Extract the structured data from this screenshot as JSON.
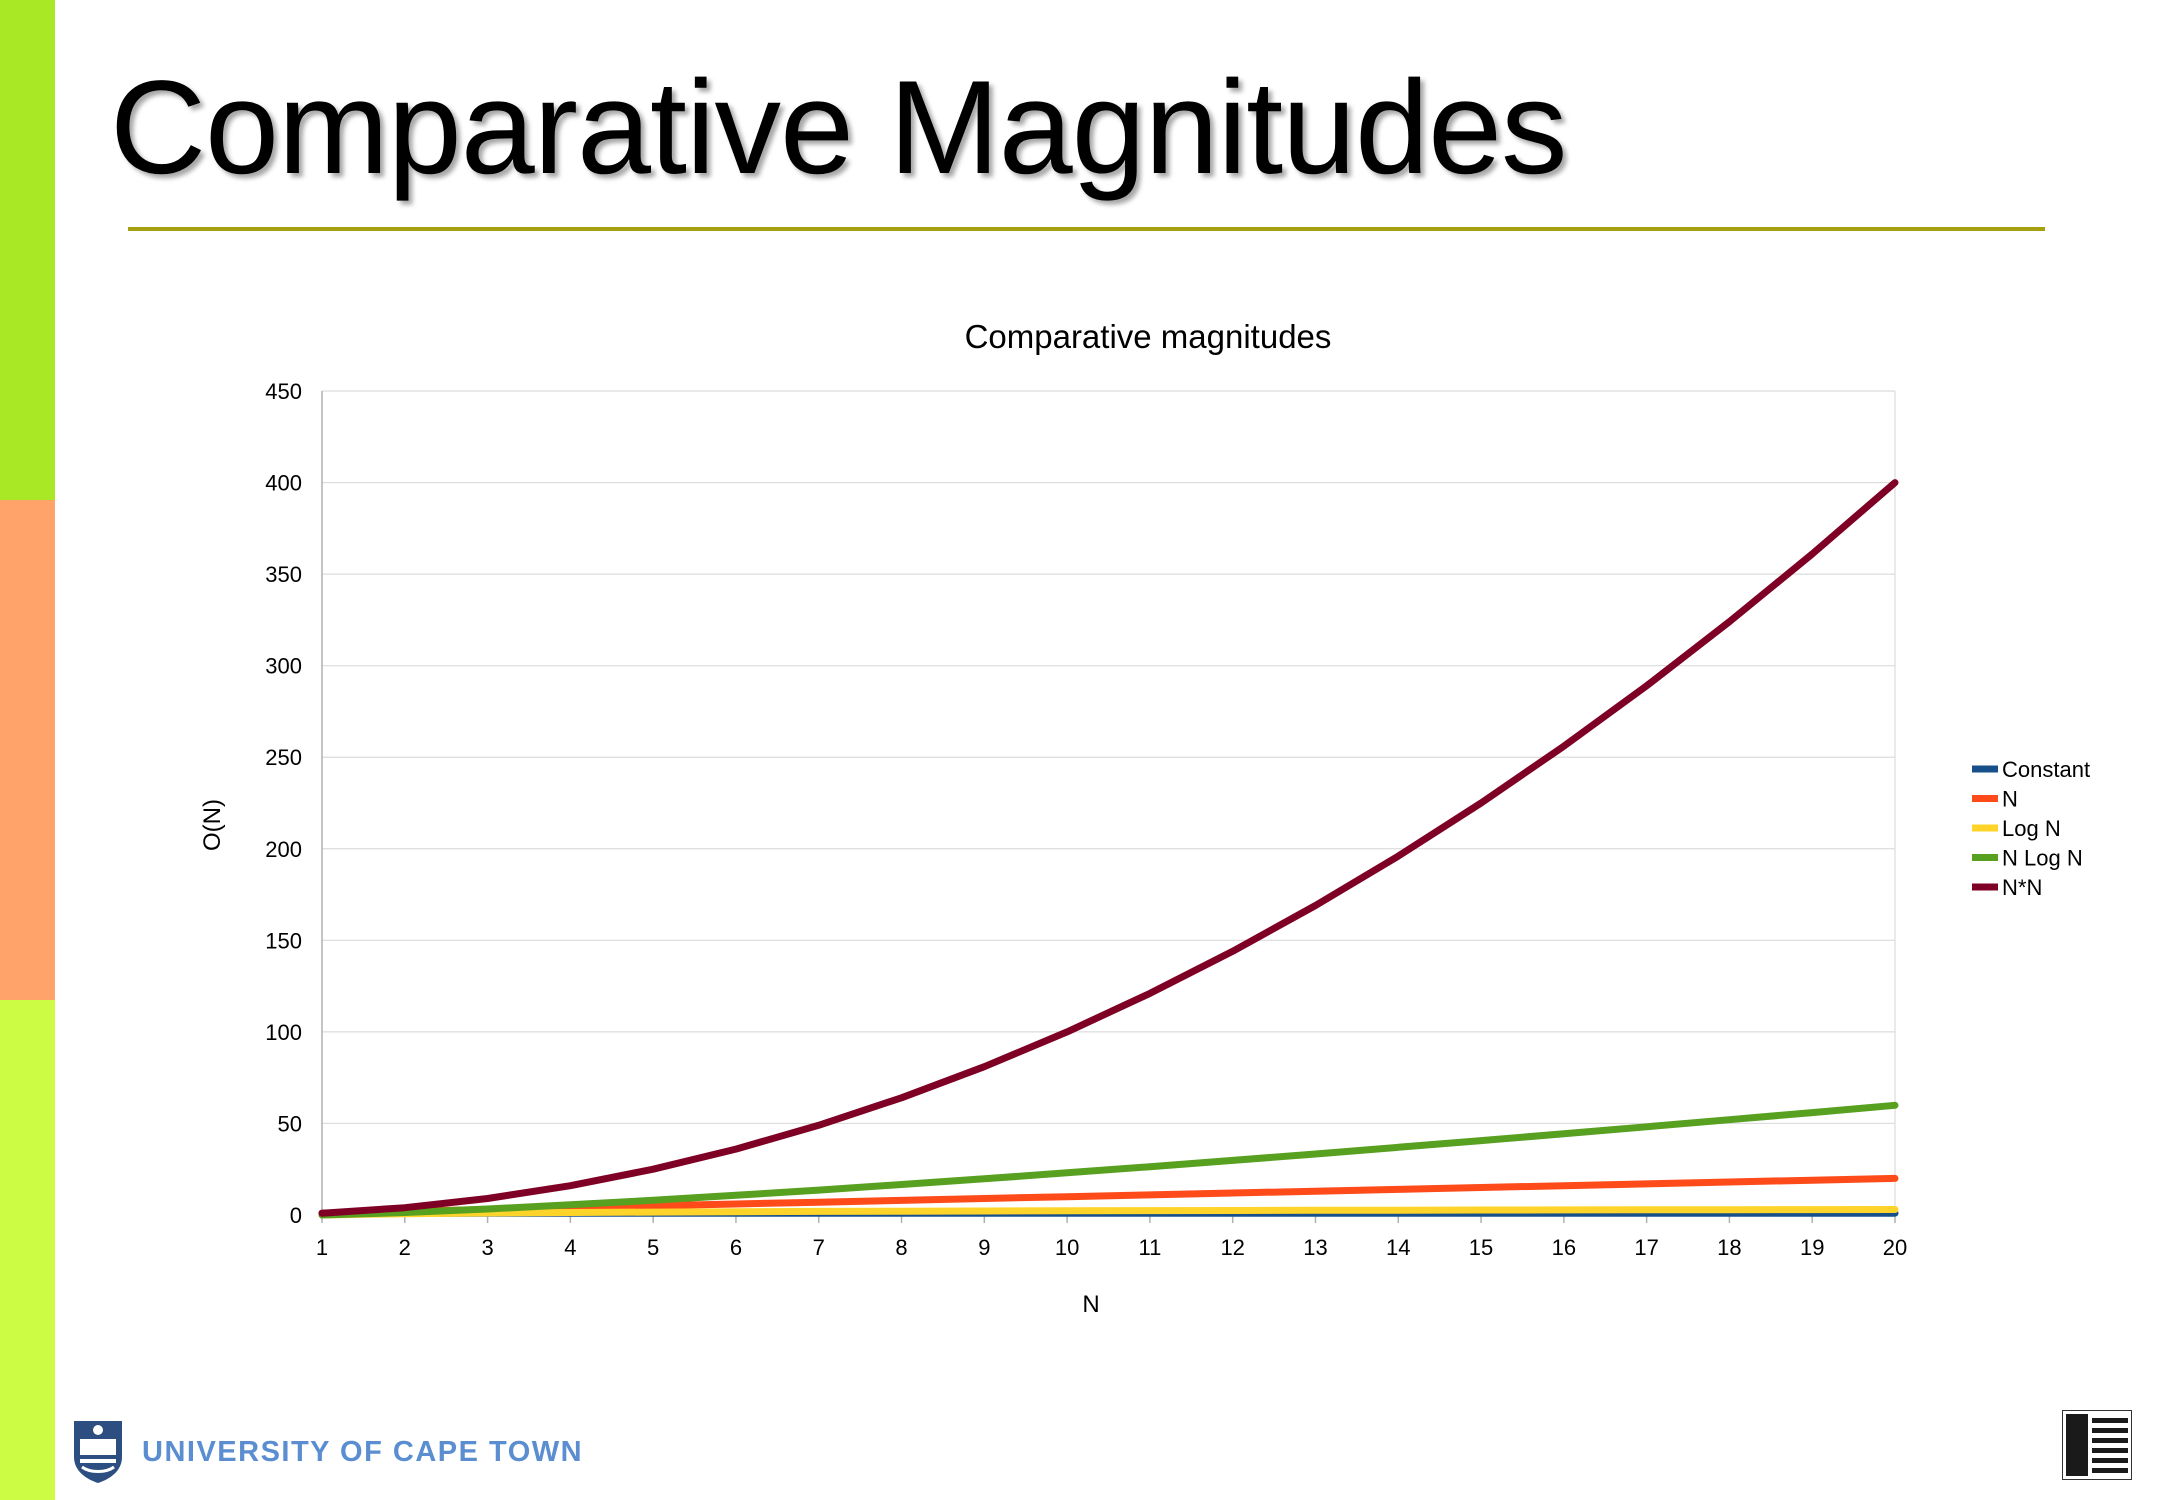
{
  "slide": {
    "title": "Comparative Magnitudes",
    "band_colors": [
      "#a8e825",
      "#ffa36a",
      "#cdfc45"
    ],
    "rule_color": "#a4a00f"
  },
  "footer": {
    "university_name": "UNIVERSITY OF CAPE TOWN",
    "logo_text_color": "#5b8ed0"
  },
  "chart_data": {
    "type": "line",
    "title": "Comparative magnitudes",
    "xlabel": "N",
    "ylabel": "O(N)",
    "ylim": [
      0,
      450
    ],
    "yticks": [
      0,
      50,
      100,
      150,
      200,
      250,
      300,
      350,
      400,
      450
    ],
    "grid": true,
    "legend_position": "right",
    "x": [
      1,
      2,
      3,
      4,
      5,
      6,
      7,
      8,
      9,
      10,
      11,
      12,
      13,
      14,
      15,
      16,
      17,
      18,
      19,
      20
    ],
    "series": [
      {
        "name": "Constant",
        "color": "#174f8a",
        "values": [
          1,
          1,
          1,
          1,
          1,
          1,
          1,
          1,
          1,
          1,
          1,
          1,
          1,
          1,
          1,
          1,
          1,
          1,
          1,
          1
        ]
      },
      {
        "name": "N",
        "color": "#ff4a1a",
        "values": [
          1,
          2,
          3,
          4,
          5,
          6,
          7,
          8,
          9,
          10,
          11,
          12,
          13,
          14,
          15,
          16,
          17,
          18,
          19,
          20
        ]
      },
      {
        "name": "Log N",
        "color": "#ffd42a",
        "values": [
          0,
          0.69,
          1.1,
          1.39,
          1.61,
          1.79,
          1.95,
          2.08,
          2.2,
          2.3,
          2.4,
          2.48,
          2.56,
          2.64,
          2.71,
          2.77,
          2.83,
          2.89,
          2.94,
          3
        ]
      },
      {
        "name": "N Log N",
        "color": "#57a020",
        "values": [
          0,
          1.39,
          3.3,
          5.55,
          8.05,
          10.75,
          13.62,
          16.64,
          19.78,
          23.03,
          26.38,
          29.82,
          33.34,
          36.95,
          40.62,
          44.36,
          48.16,
          52.03,
          55.94,
          59.91
        ]
      },
      {
        "name": "N*N",
        "color": "#7f0025",
        "values": [
          1,
          4,
          9,
          16,
          25,
          36,
          49,
          64,
          81,
          100,
          121,
          144,
          169,
          196,
          225,
          256,
          289,
          324,
          361,
          400
        ]
      }
    ]
  }
}
